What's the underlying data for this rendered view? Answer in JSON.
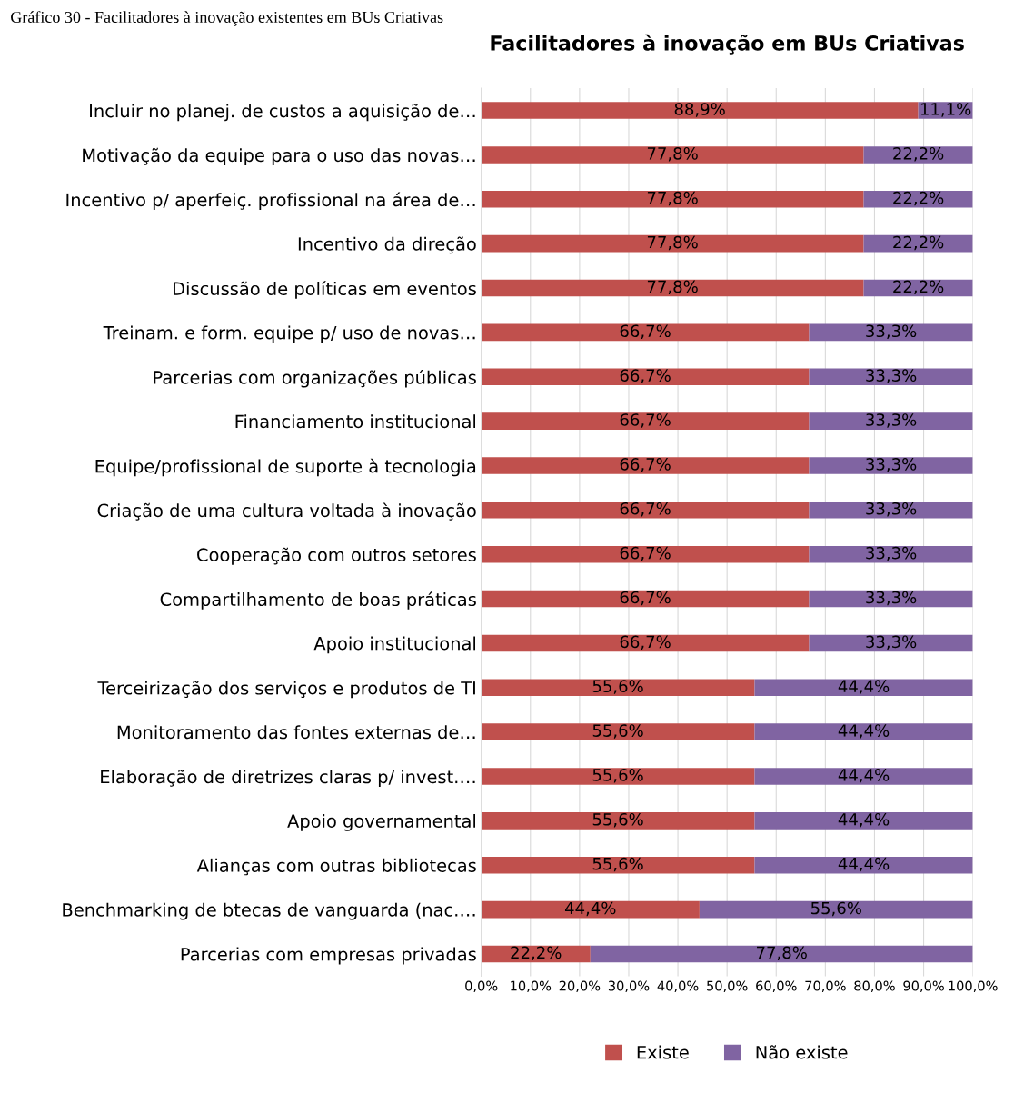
{
  "chart_data": {
    "type": "bar",
    "orientation": "horizontal",
    "stacked": true,
    "title": "Facilitadores à inovação em BUs Criativas",
    "annotations": [
      "Gráfico 30 - Facilitadores à inovação existentes em BUs Criativas"
    ],
    "categories": [
      "Incluir no planej. de custos a aquisição de…",
      "Motivação da equipe para o uso das novas…",
      "Incentivo p/ aperfeiç. profissional na área de…",
      "Incentivo da direção",
      "Discussão de políticas em eventos",
      "Treinam. e form. equipe p/ uso de novas…",
      "Parcerias com organizações públicas",
      "Financiamento institucional",
      "Equipe/profissional de suporte à tecnologia",
      "Criação de uma cultura voltada à inovação",
      "Cooperação com outros setores",
      "Compartilhamento de boas práticas",
      "Apoio institucional",
      "Terceirização dos serviços e produtos de TI",
      "Monitoramento das fontes externas de…",
      "Elaboração de diretrizes claras p/ invest.…",
      "Apoio governamental",
      "Alianças com outras bibliotecas",
      "Benchmarking de btecas de vanguarda (nac.…",
      "Parcerias com empresas privadas"
    ],
    "series": [
      {
        "name": "Existe",
        "color": "#c0504d",
        "values": [
          88.9,
          77.8,
          77.8,
          77.8,
          77.8,
          66.7,
          66.7,
          66.7,
          66.7,
          66.7,
          66.7,
          66.7,
          66.7,
          55.6,
          55.6,
          55.6,
          55.6,
          55.6,
          44.4,
          22.2
        ],
        "value_labels": [
          "88,9%",
          "77,8%",
          "77,8%",
          "77,8%",
          "77,8%",
          "66,7%",
          "66,7%",
          "66,7%",
          "66,7%",
          "66,7%",
          "66,7%",
          "66,7%",
          "66,7%",
          "55,6%",
          "55,6%",
          "55,6%",
          "55,6%",
          "55,6%",
          "44,4%",
          "22,2%"
        ]
      },
      {
        "name": "Não existe",
        "color": "#8064a2",
        "values": [
          11.1,
          22.2,
          22.2,
          22.2,
          22.2,
          33.3,
          33.3,
          33.3,
          33.3,
          33.3,
          33.3,
          33.3,
          33.3,
          44.4,
          44.4,
          44.4,
          44.4,
          44.4,
          55.6,
          77.8
        ],
        "value_labels": [
          "11,1%",
          "22,2%",
          "22,2%",
          "22,2%",
          "22,2%",
          "33,3%",
          "33,3%",
          "33,3%",
          "33,3%",
          "33,3%",
          "33,3%",
          "33,3%",
          "33,3%",
          "44,4%",
          "44,4%",
          "44,4%",
          "44,4%",
          "44,4%",
          "55,6%",
          "77,8%"
        ]
      }
    ],
    "xlim": [
      0,
      100
    ],
    "xticks": [
      {
        "value": 0,
        "label": "0,0%"
      },
      {
        "value": 10,
        "label": "10,0%"
      },
      {
        "value": 20,
        "label": "20,0%"
      },
      {
        "value": 30,
        "label": "30,0%"
      },
      {
        "value": 40,
        "label": "40,0%"
      },
      {
        "value": 50,
        "label": "50,0%"
      },
      {
        "value": 60,
        "label": "60,0%"
      },
      {
        "value": 70,
        "label": "70,0%"
      },
      {
        "value": 80,
        "label": "80,0%"
      },
      {
        "value": 90,
        "label": "90,0%"
      },
      {
        "value": 100,
        "label": "100,0%"
      }
    ],
    "grid": "x",
    "legend": "bottom"
  }
}
